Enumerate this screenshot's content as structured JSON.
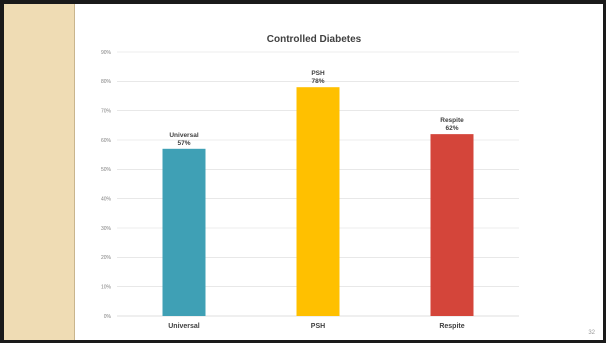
{
  "slide": {
    "page_number": "32"
  },
  "chart_data": {
    "type": "bar",
    "title": "Controlled Diabetes",
    "categories": [
      "Universal",
      "PSH",
      "Respite"
    ],
    "values": [
      57,
      78,
      62
    ],
    "data_labels": [
      {
        "name": "Universal",
        "value": "57%"
      },
      {
        "name": "PSH",
        "value": "78%"
      },
      {
        "name": "Respite",
        "value": "62%"
      }
    ],
    "colors": [
      "#3fa0b5",
      "#ffc000",
      "#d4453a"
    ],
    "ylim": [
      0,
      90
    ],
    "yticks": [
      "0%",
      "10%",
      "20%",
      "30%",
      "40%",
      "50%",
      "60%",
      "70%",
      "80%",
      "90%"
    ],
    "grid": true,
    "legend": "none"
  }
}
